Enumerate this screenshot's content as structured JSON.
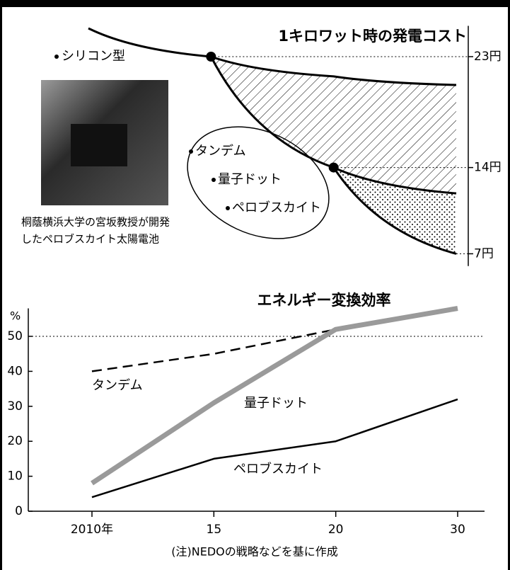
{
  "chart_data": [
    {
      "type": "line",
      "title": "1キロワット時の発電コスト",
      "categories": [
        null,
        null,
        null,
        null
      ],
      "series": [
        {
          "name": "シリコン型",
          "color": "#000000",
          "values": [
            25.3,
            23,
            21.4,
            20.7
          ]
        },
        {
          "color": "#000000",
          "values": [
            null,
            23,
            14,
            11.9
          ]
        },
        {
          "color": "#000000",
          "values": [
            null,
            null,
            14,
            7
          ]
        }
      ],
      "group_labels": [
        "タンデム",
        "量子ドット",
        "ペロブスカイト"
      ],
      "caption": [
        "桐蔭横浜大学の宮坂教授が開発",
        "したペロブスカイト太陽電池"
      ],
      "ylim": [
        6,
        25.5
      ],
      "yticks": [
        {
          "value": 23,
          "label": "23円"
        },
        {
          "value": 14,
          "label": "14円"
        },
        {
          "value": 7,
          "label": "7円"
        }
      ],
      "grid": true
    },
    {
      "type": "line",
      "title": "エネルギー変換効率",
      "ylabel": "%",
      "categories": [
        "2010年",
        "15",
        "20",
        "30"
      ],
      "series": [
        {
          "name": "タンデム",
          "color": "#000000",
          "style": "dashed",
          "values": [
            40,
            45,
            52,
            58
          ]
        },
        {
          "name": "量子ドット",
          "color": "#9a9a9a",
          "style": "thick",
          "values": [
            8,
            31,
            52,
            58
          ]
        },
        {
          "name": "ペロブスカイト",
          "color": "#000000",
          "style": "solid",
          "values": [
            4,
            15,
            20,
            32
          ]
        }
      ],
      "ylim": [
        0,
        58
      ],
      "yticks": [
        0,
        10,
        20,
        30,
        40,
        50
      ],
      "reference_line": 50,
      "note": "(注)NEDOの戦略などを基に作成"
    }
  ]
}
